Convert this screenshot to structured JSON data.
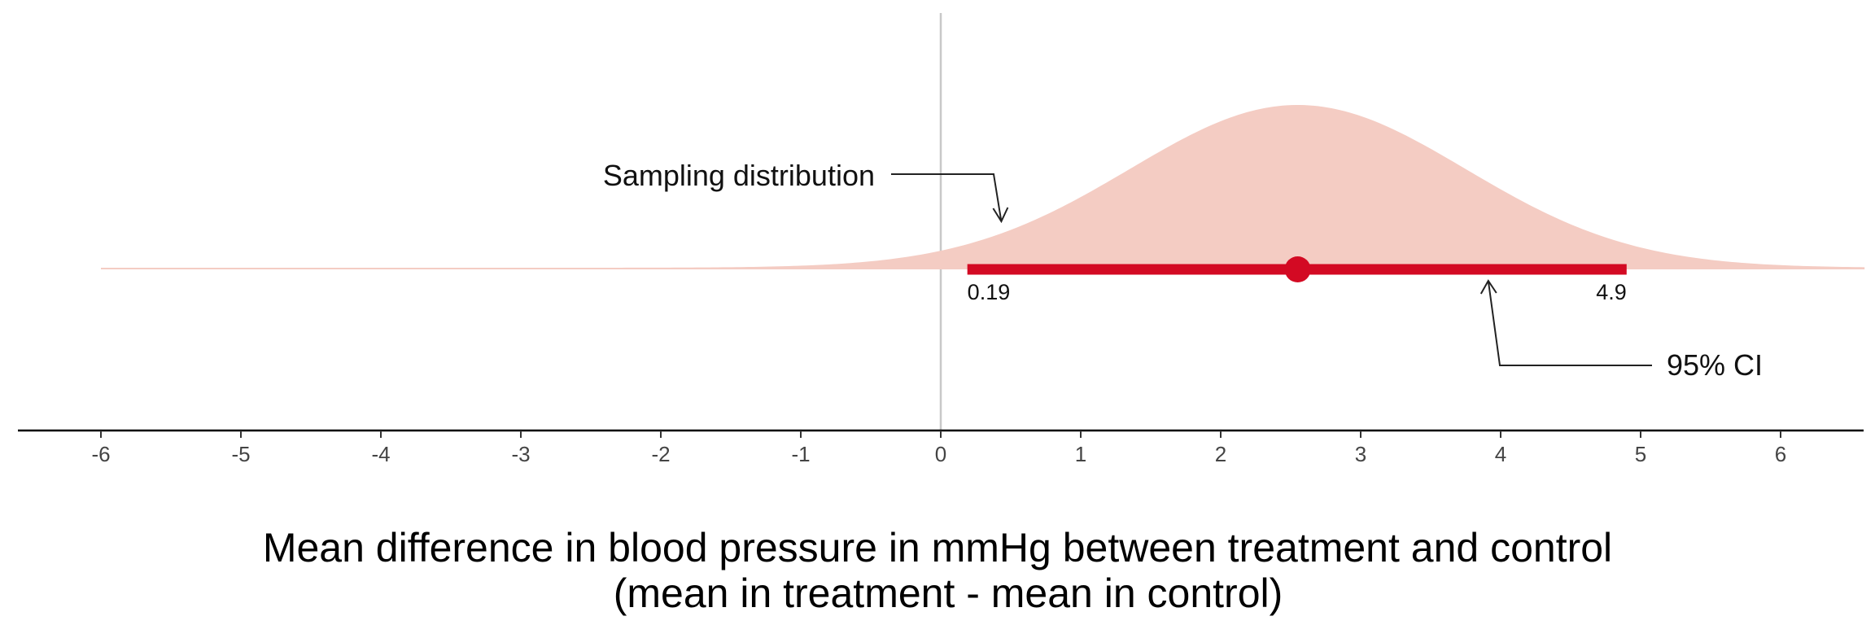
{
  "chart_data": {
    "type": "area",
    "xlabel": "Mean difference in blood pressure in mmHg between treatment and control",
    "xlabel_line2": "(mean in treatment - mean in control)",
    "xlim": [
      -6.6,
      6.6
    ],
    "xticks": [
      -6,
      -5,
      -4,
      -3,
      -2,
      -1,
      0,
      1,
      2,
      3,
      4,
      5,
      6
    ],
    "xtick_labels": [
      "-6",
      "-5",
      "-4",
      "-3",
      "-2",
      "-1",
      "0",
      "1",
      "2",
      "3",
      "4",
      "5",
      "6"
    ],
    "reference_line_x": 0,
    "distribution": {
      "type": "normal",
      "mean": 2.55,
      "sd": 1.2,
      "x_range": [
        -6,
        6.6
      ]
    },
    "point_estimate": 2.55,
    "ci": {
      "lower": 0.19,
      "upper": 4.9,
      "lower_label": "0.19",
      "upper_label": "4.9"
    },
    "annotations": [
      {
        "text": "Sampling distribution",
        "target_x": 0.45
      },
      {
        "text": "95% CI",
        "target_x": 3.9
      }
    ],
    "colors": {
      "distribution": "#f4ccc3",
      "ci": "#d30a23",
      "reference_line": "#c8c8c8",
      "axis": "#000000"
    },
    "grid": false,
    "legend": "none"
  }
}
